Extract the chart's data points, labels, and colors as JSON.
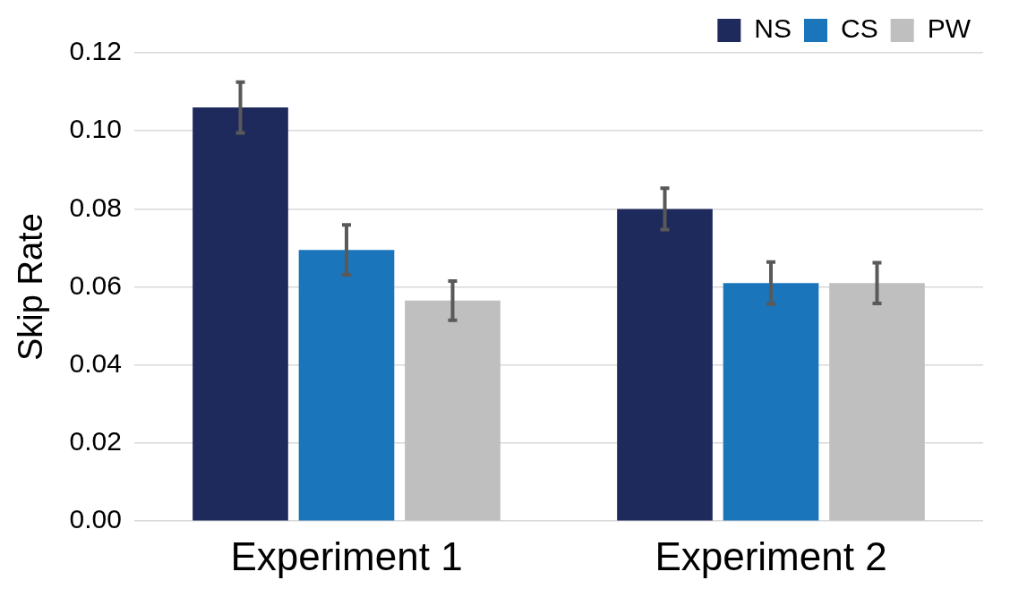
{
  "chart_data": {
    "type": "bar",
    "ylabel": "Skip Rate",
    "categories": [
      "Experiment 1",
      "Experiment 2"
    ],
    "series": [
      {
        "name": "NS",
        "color": "#1f2a5c",
        "values": [
          0.106,
          0.08
        ],
        "errors": [
          0.0065,
          0.0053
        ]
      },
      {
        "name": "CS",
        "color": "#1a75bb",
        "values": [
          0.0695,
          0.061
        ],
        "errors": [
          0.0064,
          0.0054
        ]
      },
      {
        "name": "PW",
        "color": "#bfbfbf",
        "values": [
          0.0565,
          0.061
        ],
        "errors": [
          0.005,
          0.0052
        ]
      }
    ],
    "ylim": [
      0,
      0.12
    ],
    "yticks": [
      {
        "value": 0,
        "label": "0.00"
      },
      0.02,
      0.04,
      0.06,
      0.08,
      {
        "value": 0.1,
        "label": "0.10"
      },
      0.12
    ],
    "grid": "y",
    "legend": "top right"
  }
}
